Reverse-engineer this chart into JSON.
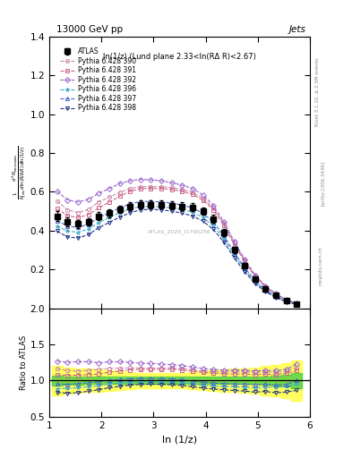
{
  "title_left": "13000 GeV pp",
  "title_right": "Jets",
  "annotation": "ln(1/z) (Lund plane 2.33<ln(RΔ R)<2.67)",
  "watermark": "ATLAS_2020_I1790256",
  "rivet_text": "Rivet 3.1.10, ≥ 2.5M events",
  "arxiv_text": "[arXiv:1306.3436]",
  "mcplots_text": "mcplots.cern.ch",
  "ylabel_main": "$\\frac{1}{N_{\\rm jets}}\\frac{d^2 N_{\\rm emissions}}{d\\ln(R/\\Delta R)\\,d\\ln(1/z)}$",
  "ylabel_ratio": "Ratio to ATLAS",
  "xlabel": "ln (1/z)",
  "ylim_main": [
    0.0,
    1.4
  ],
  "ylim_ratio": [
    0.5,
    2.0
  ],
  "xlim": [
    1.0,
    6.0
  ],
  "yticks_main": [
    0.2,
    0.4,
    0.6,
    0.8,
    1.0,
    1.2,
    1.4
  ],
  "yticks_ratio": [
    0.5,
    1.0,
    1.5,
    2.0
  ],
  "xticks": [
    1,
    2,
    3,
    4,
    5,
    6
  ],
  "atlas_x": [
    1.15,
    1.35,
    1.55,
    1.75,
    1.95,
    2.15,
    2.35,
    2.55,
    2.75,
    2.95,
    3.15,
    3.35,
    3.55,
    3.75,
    3.95,
    4.15,
    4.35,
    4.55,
    4.75,
    4.95,
    5.15,
    5.35,
    5.55,
    5.75
  ],
  "atlas_y": [
    0.475,
    0.445,
    0.435,
    0.445,
    0.475,
    0.49,
    0.51,
    0.525,
    0.535,
    0.535,
    0.535,
    0.53,
    0.525,
    0.52,
    0.5,
    0.46,
    0.39,
    0.3,
    0.22,
    0.15,
    0.1,
    0.065,
    0.038,
    0.022
  ],
  "atlas_yerr_lo": [
    0.025,
    0.022,
    0.02,
    0.02,
    0.02,
    0.02,
    0.02,
    0.02,
    0.02,
    0.02,
    0.02,
    0.02,
    0.02,
    0.02,
    0.02,
    0.02,
    0.018,
    0.015,
    0.012,
    0.009,
    0.007,
    0.005,
    0.003,
    0.002
  ],
  "atlas_yerr_hi": [
    0.025,
    0.022,
    0.02,
    0.02,
    0.02,
    0.02,
    0.02,
    0.02,
    0.02,
    0.02,
    0.02,
    0.02,
    0.02,
    0.02,
    0.02,
    0.02,
    0.018,
    0.015,
    0.012,
    0.009,
    0.007,
    0.005,
    0.003,
    0.002
  ],
  "mc_x": [
    1.15,
    1.35,
    1.55,
    1.75,
    1.95,
    2.15,
    2.35,
    2.55,
    2.75,
    2.95,
    3.15,
    3.35,
    3.55,
    3.75,
    3.95,
    4.15,
    4.35,
    4.55,
    4.75,
    4.95,
    5.15,
    5.35,
    5.55,
    5.75
  ],
  "mc390_y": [
    0.553,
    0.507,
    0.493,
    0.508,
    0.548,
    0.572,
    0.597,
    0.617,
    0.627,
    0.627,
    0.627,
    0.622,
    0.612,
    0.597,
    0.567,
    0.517,
    0.437,
    0.337,
    0.247,
    0.167,
    0.112,
    0.072,
    0.043,
    0.026
  ],
  "mc391_y": [
    0.512,
    0.477,
    0.467,
    0.482,
    0.517,
    0.547,
    0.577,
    0.602,
    0.617,
    0.617,
    0.617,
    0.612,
    0.602,
    0.587,
    0.557,
    0.507,
    0.427,
    0.327,
    0.24,
    0.162,
    0.109,
    0.07,
    0.042,
    0.025
  ],
  "mc392_y": [
    0.603,
    0.558,
    0.548,
    0.561,
    0.592,
    0.617,
    0.642,
    0.657,
    0.664,
    0.662,
    0.657,
    0.647,
    0.634,
    0.617,
    0.584,
    0.53,
    0.447,
    0.344,
    0.252,
    0.17,
    0.114,
    0.074,
    0.044,
    0.027
  ],
  "mc396_y": [
    0.422,
    0.397,
    0.392,
    0.407,
    0.442,
    0.467,
    0.492,
    0.512,
    0.524,
    0.525,
    0.523,
    0.517,
    0.509,
    0.495,
    0.467,
    0.425,
    0.358,
    0.274,
    0.2,
    0.135,
    0.091,
    0.059,
    0.035,
    0.021
  ],
  "mc397_y": [
    0.452,
    0.422,
    0.417,
    0.432,
    0.467,
    0.492,
    0.517,
    0.537,
    0.55,
    0.55,
    0.548,
    0.542,
    0.532,
    0.517,
    0.489,
    0.444,
    0.374,
    0.286,
    0.209,
    0.141,
    0.095,
    0.061,
    0.036,
    0.022
  ],
  "mc398_y": [
    0.397,
    0.367,
    0.362,
    0.379,
    0.415,
    0.442,
    0.469,
    0.492,
    0.507,
    0.509,
    0.507,
    0.5,
    0.49,
    0.475,
    0.449,
    0.406,
    0.341,
    0.259,
    0.188,
    0.126,
    0.085,
    0.054,
    0.032,
    0.019
  ],
  "mc390_color": "#cc88aa",
  "mc391_color": "#cc6688",
  "mc392_color": "#9966cc",
  "mc396_color": "#44aacc",
  "mc397_color": "#4466cc",
  "mc398_color": "#223388",
  "mc390_marker": "o",
  "mc391_marker": "s",
  "mc392_marker": "D",
  "mc396_marker": "*",
  "mc397_marker": "^",
  "mc398_marker": "v",
  "mc390_label": "Pythia 6.428 390",
  "mc391_label": "Pythia 6.428 391",
  "mc392_label": "Pythia 6.428 392",
  "mc396_label": "Pythia 6.428 396",
  "mc397_label": "Pythia 6.428 397",
  "mc398_label": "Pythia 6.428 398",
  "ratio390": [
    1.164,
    1.139,
    1.133,
    1.142,
    1.154,
    1.167,
    1.171,
    1.175,
    1.172,
    1.172,
    1.172,
    1.174,
    1.166,
    1.148,
    1.134,
    1.124,
    1.121,
    1.123,
    1.123,
    1.113,
    1.12,
    1.108,
    1.132,
    1.182
  ],
  "ratio391": [
    1.078,
    1.072,
    1.073,
    1.084,
    1.088,
    1.116,
    1.131,
    1.147,
    1.153,
    1.153,
    1.153,
    1.155,
    1.147,
    1.129,
    1.114,
    1.102,
    1.095,
    1.09,
    1.091,
    1.08,
    1.09,
    1.077,
    1.105,
    1.136
  ],
  "ratio392": [
    1.269,
    1.254,
    1.26,
    1.261,
    1.246,
    1.259,
    1.259,
    1.251,
    1.241,
    1.237,
    1.228,
    1.221,
    1.208,
    1.187,
    1.168,
    1.152,
    1.146,
    1.147,
    1.145,
    1.133,
    1.14,
    1.138,
    1.158,
    1.227
  ],
  "ratio396": [
    0.888,
    0.892,
    0.901,
    0.915,
    0.931,
    0.953,
    0.965,
    0.975,
    0.979,
    0.981,
    0.978,
    0.976,
    0.97,
    0.952,
    0.934,
    0.924,
    0.918,
    0.913,
    0.909,
    0.9,
    0.91,
    0.908,
    0.921,
    0.955
  ],
  "ratio397": [
    0.951,
    0.949,
    0.958,
    0.971,
    0.983,
    1.004,
    1.014,
    1.023,
    1.028,
    1.028,
    1.025,
    1.023,
    1.013,
    0.994,
    0.978,
    0.965,
    0.959,
    0.953,
    0.95,
    0.94,
    0.95,
    0.938,
    0.947,
    1.0
  ],
  "ratio398": [
    0.836,
    0.825,
    0.832,
    0.853,
    0.874,
    0.902,
    0.92,
    0.937,
    0.948,
    0.951,
    0.948,
    0.943,
    0.933,
    0.913,
    0.898,
    0.883,
    0.874,
    0.863,
    0.855,
    0.84,
    0.85,
    0.831,
    0.842,
    0.864
  ],
  "atlas_ratio_band_x": [
    1.15,
    1.35,
    1.55,
    1.75,
    1.95,
    2.15,
    2.35,
    2.55,
    2.75,
    2.95,
    3.15,
    3.35,
    3.55,
    3.75,
    3.95,
    4.15,
    4.35,
    4.55,
    4.75,
    4.95,
    5.15,
    5.35,
    5.55,
    5.75
  ],
  "atlas_ratio_green_lo": [
    0.93,
    0.94,
    0.94,
    0.95,
    0.95,
    0.95,
    0.95,
    0.95,
    0.95,
    0.95,
    0.95,
    0.95,
    0.95,
    0.95,
    0.95,
    0.95,
    0.95,
    0.95,
    0.95,
    0.95,
    0.94,
    0.93,
    0.92,
    0.9
  ],
  "atlas_ratio_green_hi": [
    1.07,
    1.06,
    1.06,
    1.05,
    1.05,
    1.05,
    1.05,
    1.05,
    1.05,
    1.05,
    1.05,
    1.05,
    1.05,
    1.05,
    1.05,
    1.05,
    1.05,
    1.05,
    1.05,
    1.05,
    1.06,
    1.07,
    1.08,
    1.1
  ],
  "atlas_ratio_yellow_lo": [
    0.8,
    0.82,
    0.83,
    0.84,
    0.85,
    0.86,
    0.87,
    0.88,
    0.89,
    0.89,
    0.89,
    0.89,
    0.89,
    0.88,
    0.87,
    0.86,
    0.85,
    0.84,
    0.83,
    0.82,
    0.8,
    0.78,
    0.76,
    0.72
  ],
  "atlas_ratio_yellow_hi": [
    1.2,
    1.18,
    1.17,
    1.16,
    1.15,
    1.14,
    1.13,
    1.12,
    1.11,
    1.11,
    1.11,
    1.11,
    1.11,
    1.12,
    1.13,
    1.14,
    1.15,
    1.16,
    1.17,
    1.18,
    1.2,
    1.22,
    1.24,
    1.28
  ]
}
